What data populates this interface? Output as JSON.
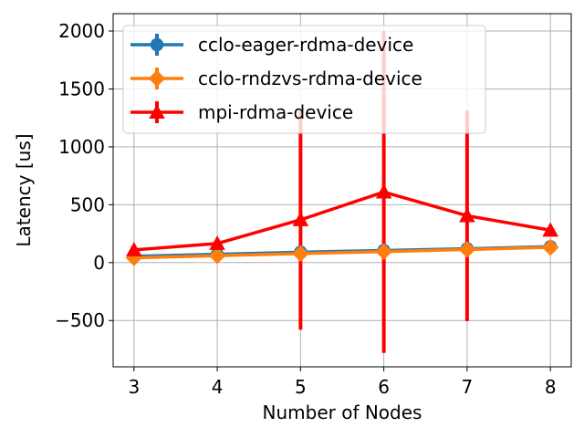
{
  "chart_data": {
    "type": "line",
    "xlabel": "Number of Nodes",
    "ylabel": "Latency [us]",
    "x": [
      3,
      4,
      5,
      6,
      7,
      8
    ],
    "xlim": [
      2.75,
      8.25
    ],
    "ylim": [
      -900,
      2150
    ],
    "xticks": [
      "3",
      "4",
      "5",
      "6",
      "7",
      "8"
    ],
    "yticks": [
      -500,
      0,
      500,
      1000,
      1500,
      2000
    ],
    "ytick_labels": [
      "−500",
      "0",
      "500",
      "1000",
      "1500",
      "2000"
    ],
    "grid": true,
    "legend_position": "top-left",
    "series": [
      {
        "name": "cclo-eager-rdma-device",
        "color": "#1f77b4",
        "marker": "circle",
        "values": [
          55,
          72,
          90,
          105,
          120,
          138
        ],
        "errors": [
          6,
          6,
          8,
          8,
          10,
          10
        ]
      },
      {
        "name": "cclo-rndzvs-rdma-device",
        "color": "#ff7f0e",
        "marker": "diamond",
        "values": [
          42,
          60,
          78,
          95,
          113,
          132
        ],
        "errors": [
          6,
          6,
          8,
          8,
          10,
          10
        ]
      },
      {
        "name": "mpi-rdma-device",
        "color": "#ff0000",
        "marker": "triangle-up",
        "values": [
          110,
          165,
          370,
          610,
          405,
          280
        ],
        "errors": [
          0,
          0,
          950,
          1390,
          910,
          0
        ]
      }
    ]
  }
}
